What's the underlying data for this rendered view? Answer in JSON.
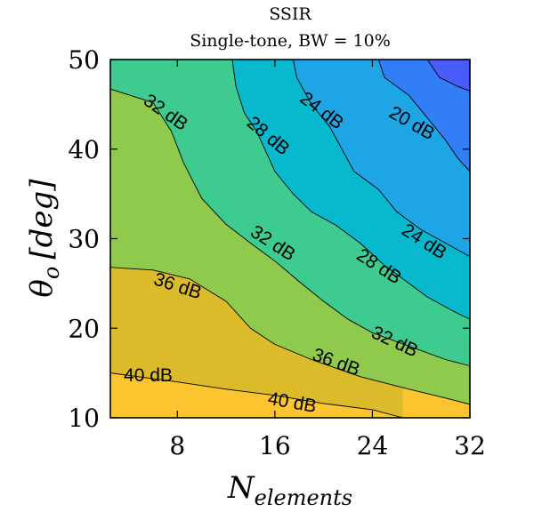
{
  "chart_data": {
    "type": "contour",
    "title": "SSIR",
    "subtitle": "Single-tone, BW = 10%",
    "xlabel": {
      "base": "N",
      "sub": "elements"
    },
    "ylabel": {
      "base": "θ",
      "sub": "o",
      "unit": "[deg]"
    },
    "xlim": [
      2.5,
      32
    ],
    "ylim": [
      10,
      50
    ],
    "xticks": [
      8,
      16,
      24,
      32
    ],
    "yticks": [
      10,
      20,
      30,
      40,
      50
    ],
    "levels_db": [
      44,
      40,
      36,
      32,
      28,
      24,
      20,
      16
    ],
    "level_colors": [
      "#fcc530",
      "#dbbb2a",
      "#8fca4d",
      "#3ecb8f",
      "#08b8cd",
      "#1ea5e6",
      "#327ef6",
      "#4a5bfb"
    ],
    "contour_lines": [
      {
        "level": 40,
        "points": [
          [
            2.5,
            15.0
          ],
          [
            8,
            14.0
          ],
          [
            12,
            13.2
          ],
          [
            16,
            12.5
          ],
          [
            20,
            11.6
          ],
          [
            24,
            10.9
          ],
          [
            26.5,
            10.0
          ]
        ]
      },
      {
        "level": 36,
        "points": [
          [
            2.5,
            26.8
          ],
          [
            6,
            26.5
          ],
          [
            9,
            25.5
          ],
          [
            12,
            23.0
          ],
          [
            14,
            20.0
          ],
          [
            16,
            18.2
          ],
          [
            19,
            16.5
          ],
          [
            23,
            14.6
          ],
          [
            27,
            13.2
          ],
          [
            30,
            12.2
          ],
          [
            32,
            11.5
          ]
        ]
      },
      {
        "level": 32,
        "points": [
          [
            2.5,
            46.7
          ],
          [
            6,
            45.2
          ],
          [
            7.5,
            42.0
          ],
          [
            8.5,
            38.5
          ],
          [
            10,
            34.5
          ],
          [
            12,
            31.6
          ],
          [
            14,
            29.5
          ],
          [
            16,
            27.5
          ],
          [
            18,
            25.2
          ],
          [
            20,
            23.0
          ],
          [
            22,
            21.0
          ],
          [
            24,
            19.5
          ],
          [
            27,
            18.0
          ],
          [
            30,
            16.5
          ],
          [
            32,
            15.8
          ]
        ]
      },
      {
        "level": 28,
        "points": [
          [
            12.5,
            50.0
          ],
          [
            12.8,
            47.0
          ],
          [
            13.5,
            44.0
          ],
          [
            14.5,
            42.0
          ],
          [
            16,
            37.5
          ],
          [
            17.5,
            35.0
          ],
          [
            19,
            33.0
          ],
          [
            21,
            31.5
          ],
          [
            23,
            29.5
          ],
          [
            25,
            27.0
          ],
          [
            26.5,
            25.5
          ],
          [
            28.5,
            23.5
          ],
          [
            30.5,
            22.0
          ],
          [
            32,
            21.0
          ]
        ]
      },
      {
        "level": 24,
        "points": [
          [
            17.5,
            50.0
          ],
          [
            17.8,
            48.0
          ],
          [
            19,
            45.0
          ],
          [
            20.5,
            42.5
          ],
          [
            21.5,
            40.0
          ],
          [
            22.5,
            37.5
          ],
          [
            24.5,
            35.5
          ],
          [
            26,
            33.0
          ],
          [
            28,
            31.0
          ],
          [
            30,
            29.5
          ],
          [
            32,
            28.0
          ]
        ]
      },
      {
        "level": 20,
        "points": [
          [
            24.5,
            50.0
          ],
          [
            25.0,
            48.0
          ],
          [
            27,
            46.0
          ],
          [
            28.5,
            43.5
          ],
          [
            30,
            41.0
          ],
          [
            31,
            39.0
          ],
          [
            32,
            37.5
          ]
        ]
      },
      {
        "level": 16,
        "points": [
          [
            28.5,
            50.0
          ],
          [
            29.5,
            48.0
          ],
          [
            31,
            47.0
          ],
          [
            32,
            46.5
          ]
        ]
      }
    ],
    "contour_labels": [
      {
        "text": "40 dB",
        "x": 5.6,
        "y": 14.6,
        "angle": 0
      },
      {
        "text": "40 dB",
        "x": 17.4,
        "y": 11.6,
        "angle": 10
      },
      {
        "text": "36 dB",
        "x": 8.0,
        "y": 24.6,
        "angle": 18
      },
      {
        "text": "36 dB",
        "x": 21.0,
        "y": 16.1,
        "angle": 20
      },
      {
        "text": "32 dB",
        "x": 7.0,
        "y": 44.0,
        "angle": 35
      },
      {
        "text": "32 dB",
        "x": 15.8,
        "y": 29.4,
        "angle": 33
      },
      {
        "text": "32 dB",
        "x": 25.8,
        "y": 18.4,
        "angle": 25
      },
      {
        "text": "28 dB",
        "x": 15.4,
        "y": 41.4,
        "angle": 40
      },
      {
        "text": "28 dB",
        "x": 24.5,
        "y": 26.8,
        "angle": 33
      },
      {
        "text": "24 dB",
        "x": 19.8,
        "y": 44.2,
        "angle": 37
      },
      {
        "text": "24 dB",
        "x": 28.2,
        "y": 29.6,
        "angle": 33
      },
      {
        "text": "20 dB",
        "x": 27.2,
        "y": 42.8,
        "angle": 30
      }
    ]
  }
}
